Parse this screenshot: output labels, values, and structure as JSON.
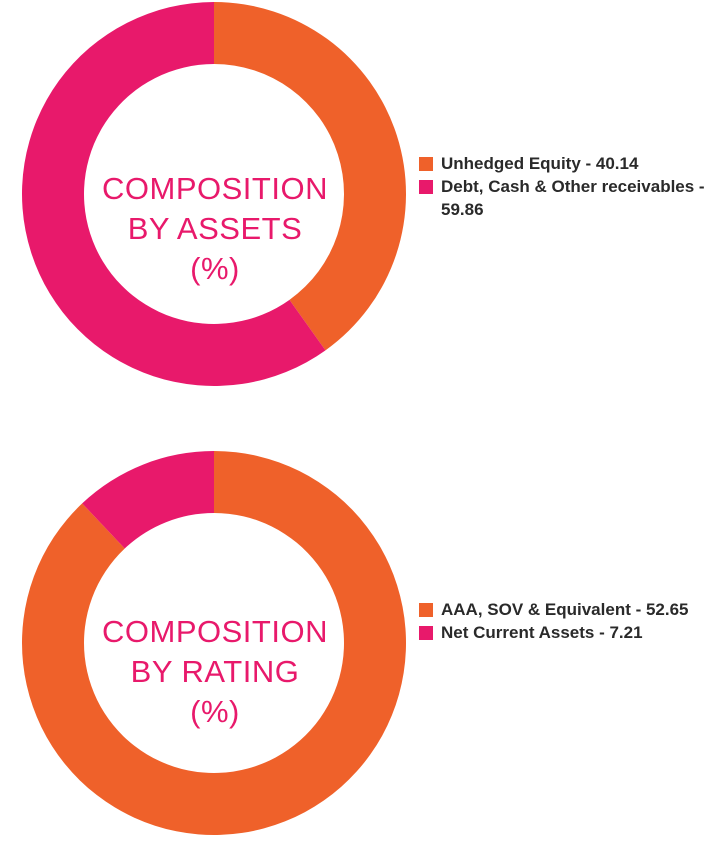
{
  "colors": {
    "orange": "#ef612a",
    "pink": "#e8196b"
  },
  "chart_data": [
    {
      "type": "pie",
      "title_lines": [
        "COMPOSITION",
        "BY ASSETS",
        "(%)"
      ],
      "donut": true,
      "legend_position": "right",
      "slices": [
        {
          "label": "Unhedged Equity - 40.14",
          "value": 40.14,
          "color": "#ef612a"
        },
        {
          "label": "Debt, Cash & Other receivables - 59.86",
          "value": 59.86,
          "color": "#e8196b"
        }
      ]
    },
    {
      "type": "pie",
      "title_lines": [
        "COMPOSITION",
        "BY RATING",
        "(%)"
      ],
      "donut": true,
      "legend_position": "right",
      "slices": [
        {
          "label": "AAA, SOV & Equivalent - 52.65",
          "value": 52.65,
          "color": "#ef612a"
        },
        {
          "label": "Net Current Assets - 7.21",
          "value": 7.21,
          "color": "#e8196b"
        }
      ]
    }
  ]
}
